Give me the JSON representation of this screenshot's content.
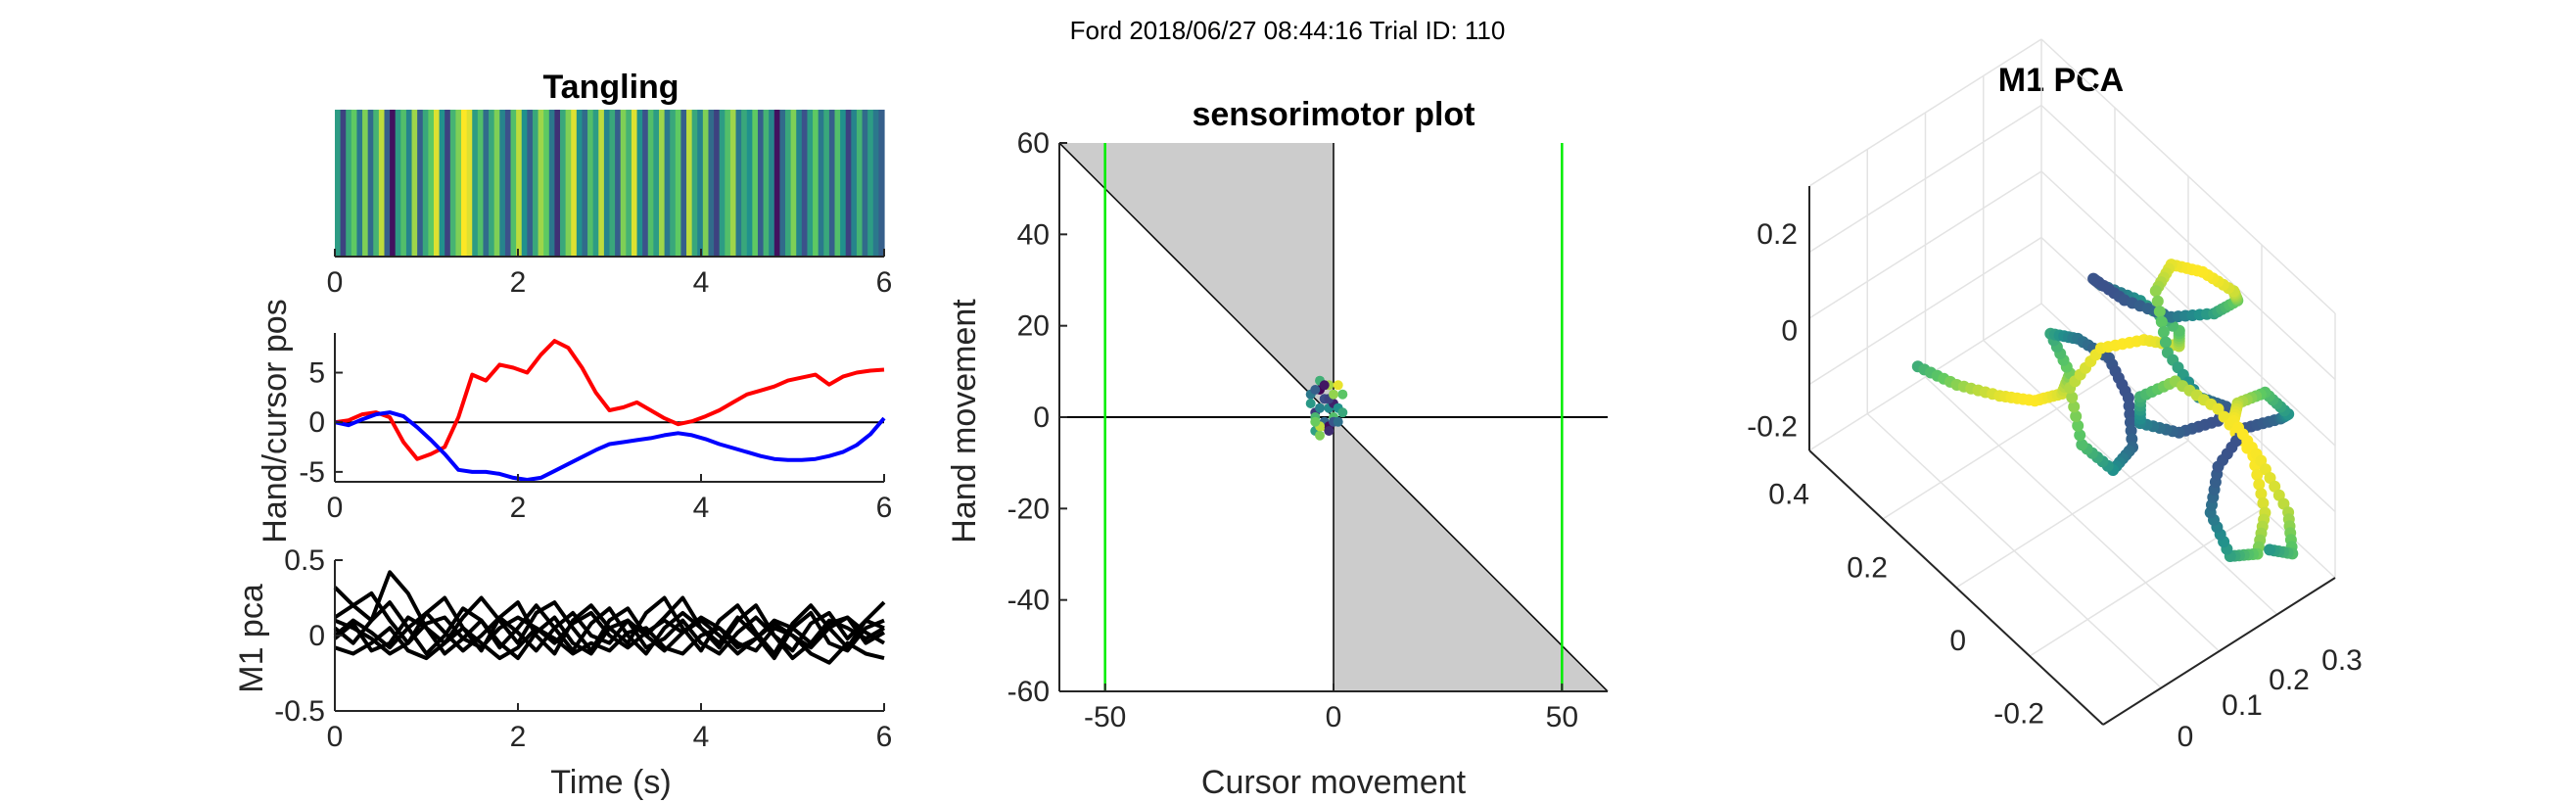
{
  "figure": {
    "suptitle": "Ford 2018/06/27 08:44:16 Trial ID: 110"
  },
  "chart_data": [
    {
      "type": "heatmap",
      "title": "Tangling",
      "xlabel": "",
      "ylabel": "",
      "xlim": [
        0,
        6
      ],
      "xticks": [
        "0",
        "2",
        "4",
        "6"
      ],
      "colormap": "viridis",
      "values": [
        0.55,
        0.2,
        0.6,
        0.75,
        0.4,
        0.8,
        0.35,
        0.65,
        0.9,
        0.3,
        0.05,
        0.55,
        0.7,
        0.45,
        0.85,
        0.3,
        0.6,
        0.75,
        0.95,
        0.5,
        0.2,
        0.65,
        0.8,
        1.0,
        0.95,
        0.55,
        0.7,
        0.35,
        0.6,
        0.8,
        0.45,
        0.25,
        0.7,
        0.9,
        0.5,
        0.3,
        0.6,
        0.85,
        0.75,
        0.4,
        0.15,
        0.6,
        0.8,
        0.95,
        0.5,
        0.35,
        0.7,
        0.55,
        0.9,
        0.45,
        0.6,
        0.3,
        0.8,
        0.65,
        0.95,
        0.5,
        0.25,
        0.7,
        0.55,
        0.85,
        0.4,
        0.6,
        0.75,
        0.3,
        0.9,
        0.6,
        0.45,
        0.8,
        0.35,
        0.2,
        0.55,
        0.7,
        0.85,
        0.4,
        0.6,
        0.5,
        0.75,
        0.3,
        0.65,
        0.45,
        0.05,
        0.35,
        0.6,
        0.8,
        0.45,
        0.25,
        0.55,
        0.75,
        0.4,
        0.6,
        0.3,
        0.7,
        0.5,
        0.2,
        0.45,
        0.65,
        0.35,
        0.55,
        0.4,
        0.3
      ]
    },
    {
      "type": "line",
      "xlabel": "",
      "ylabel": "Hand/cursor pos",
      "xlim": [
        0,
        6
      ],
      "ylim": [
        -6,
        9
      ],
      "xticks": [
        "0",
        "2",
        "4",
        "6"
      ],
      "yticks": [
        "-5",
        "0",
        "5"
      ],
      "reference_line": 0,
      "series": [
        {
          "color": "#ff0000",
          "x": [
            0,
            0.15,
            0.3,
            0.45,
            0.6,
            0.75,
            0.9,
            1.05,
            1.2,
            1.35,
            1.5,
            1.65,
            1.8,
            1.95,
            2.1,
            2.25,
            2.4,
            2.55,
            2.7,
            2.85,
            3.0,
            3.15,
            3.3,
            3.45,
            3.6,
            3.75,
            3.9,
            4.05,
            4.2,
            4.35,
            4.5,
            4.65,
            4.8,
            4.95,
            5.1,
            5.25,
            5.4,
            5.55,
            5.7,
            5.85,
            6.0
          ],
          "values": [
            0,
            0.2,
            0.8,
            1.0,
            0.5,
            -2.0,
            -3.7,
            -3.2,
            -2.5,
            0.5,
            4.8,
            4.2,
            5.8,
            5.5,
            5.0,
            6.8,
            8.2,
            7.5,
            5.5,
            3.0,
            1.2,
            1.5,
            2.0,
            1.2,
            0.4,
            -0.2,
            0.1,
            0.6,
            1.2,
            2.0,
            2.8,
            3.2,
            3.6,
            4.2,
            4.5,
            4.8,
            3.8,
            4.6,
            5.0,
            5.2,
            5.3
          ]
        },
        {
          "color": "#0000ff",
          "x": [
            0,
            0.15,
            0.3,
            0.45,
            0.6,
            0.75,
            0.9,
            1.05,
            1.2,
            1.35,
            1.5,
            1.65,
            1.8,
            1.95,
            2.1,
            2.25,
            2.4,
            2.55,
            2.7,
            2.85,
            3.0,
            3.15,
            3.3,
            3.45,
            3.6,
            3.75,
            3.9,
            4.05,
            4.2,
            4.35,
            4.5,
            4.65,
            4.8,
            4.95,
            5.1,
            5.25,
            5.4,
            5.55,
            5.7,
            5.85,
            6.0
          ],
          "values": [
            0,
            -0.3,
            0.3,
            0.8,
            1.0,
            0.6,
            -0.5,
            -1.8,
            -3.2,
            -4.8,
            -5.0,
            -5.0,
            -5.2,
            -5.6,
            -5.8,
            -5.6,
            -4.9,
            -4.2,
            -3.5,
            -2.8,
            -2.2,
            -2.0,
            -1.8,
            -1.6,
            -1.3,
            -1.1,
            -1.3,
            -1.7,
            -2.2,
            -2.6,
            -3.0,
            -3.4,
            -3.7,
            -3.8,
            -3.8,
            -3.7,
            -3.4,
            -3.0,
            -2.3,
            -1.2,
            0.4
          ]
        }
      ]
    },
    {
      "type": "line",
      "xlabel": "Time (s)",
      "ylabel": "M1 pca",
      "xlim": [
        0,
        6
      ],
      "ylim": [
        -0.5,
        0.5
      ],
      "xticks": [
        "0",
        "2",
        "4",
        "6"
      ],
      "yticks": [
        "-0.5",
        "0",
        "0.5"
      ],
      "color": "#000000",
      "x": [
        0,
        0.2,
        0.4,
        0.6,
        0.8,
        1.0,
        1.2,
        1.4,
        1.6,
        1.8,
        2.0,
        2.2,
        2.4,
        2.6,
        2.8,
        3.0,
        3.2,
        3.4,
        3.6,
        3.8,
        4.0,
        4.2,
        4.4,
        4.6,
        4.8,
        5.0,
        5.2,
        5.4,
        5.6,
        5.8,
        6.0
      ],
      "series": [
        {
          "values": [
            0.32,
            0.2,
            0.1,
            0.42,
            0.28,
            0.05,
            -0.05,
            0.12,
            0.25,
            0.1,
            -0.05,
            0.15,
            0.22,
            0.05,
            -0.1,
            0.1,
            0.18,
            0.0,
            0.12,
            0.25,
            0.05,
            -0.08,
            0.1,
            0.2,
            0.0,
            -0.1,
            0.08,
            0.15,
            -0.02,
            0.1,
            0.22
          ]
        },
        {
          "values": [
            0.12,
            0.2,
            0.28,
            0.1,
            -0.05,
            0.15,
            0.25,
            0.05,
            -0.1,
            0.12,
            0.22,
            0.0,
            -0.12,
            0.1,
            0.2,
            0.05,
            -0.05,
            0.15,
            0.25,
            0.05,
            -0.1,
            0.1,
            0.2,
            0.02,
            -0.12,
            0.08,
            0.2,
            0.05,
            -0.08,
            0.1,
            0.05
          ]
        },
        {
          "values": [
            0.05,
            -0.05,
            0.1,
            0.22,
            0.05,
            -0.12,
            0.0,
            0.18,
            0.1,
            -0.08,
            0.05,
            0.2,
            0.05,
            -0.1,
            0.08,
            0.18,
            0.0,
            -0.12,
            0.05,
            0.15,
            0.05,
            -0.05,
            0.12,
            0.0,
            -0.15,
            0.05,
            0.15,
            -0.05,
            -0.1,
            0.05,
            0.1
          ]
        },
        {
          "values": [
            -0.02,
            0.08,
            -0.1,
            -0.05,
            0.12,
            0.05,
            -0.12,
            -0.02,
            0.1,
            -0.05,
            -0.15,
            0.02,
            0.12,
            -0.05,
            -0.12,
            0.05,
            0.1,
            -0.08,
            -0.02,
            0.1,
            -0.05,
            -0.12,
            0.02,
            0.12,
            0.0,
            -0.15,
            -0.05,
            0.08,
            0.12,
            -0.05,
            0.02
          ]
        },
        {
          "values": [
            0.1,
            0.05,
            -0.02,
            -0.12,
            -0.05,
            0.08,
            0.12,
            -0.02,
            -0.08,
            0.05,
            0.12,
            0.05,
            -0.05,
            0.08,
            0.15,
            0.0,
            -0.08,
            0.02,
            0.1,
            0.02,
            0.12,
            0.05,
            -0.08,
            -0.02,
            0.1,
            0.05,
            -0.05,
            0.1,
            0.05,
            -0.02,
            0.05
          ]
        },
        {
          "values": [
            -0.08,
            -0.12,
            -0.05,
            0.05,
            -0.1,
            -0.15,
            -0.05,
            0.05,
            -0.05,
            -0.15,
            -0.08,
            0.05,
            -0.02,
            -0.12,
            -0.05,
            -0.1,
            0.02,
            0.05,
            -0.08,
            -0.12,
            0.0,
            0.05,
            -0.05,
            -0.1,
            0.05,
            0.0,
            -0.12,
            -0.18,
            -0.05,
            -0.12,
            -0.15
          ]
        },
        {
          "values": [
            0.0,
            0.1,
            0.02,
            -0.08,
            0.05,
            0.15,
            0.02,
            -0.1,
            0.0,
            0.12,
            0.02,
            -0.1,
            0.05,
            0.15,
            0.0,
            -0.05,
            0.1,
            0.0,
            -0.1,
            0.02,
            0.1,
            0.0,
            -0.12,
            -0.02,
            0.08,
            0.0,
            -0.08,
            0.05,
            0.12,
            0.02,
            -0.05
          ]
        }
      ]
    },
    {
      "type": "scatter",
      "title": "sensorimotor plot",
      "xlabel": "Cursor movement",
      "ylabel": "Hand movement",
      "xlim": [
        -60,
        60
      ],
      "ylim": [
        -60,
        60
      ],
      "xticks": [
        "-50",
        "0",
        "50"
      ],
      "yticks": [
        "60",
        "40",
        "20",
        "0",
        "-20",
        "-40",
        "-60"
      ],
      "shaded_regions": "quadrants II and IV between the axes and the diagonal y = -x",
      "vertical_lines": {
        "color": "#00ee00",
        "x": [
          -50,
          50
        ]
      },
      "colormap": "viridis",
      "points": [
        [
          -3,
          6
        ],
        [
          -2,
          4
        ],
        [
          -1,
          2
        ],
        [
          0,
          0
        ],
        [
          -2,
          -2
        ],
        [
          -4,
          1
        ],
        [
          -5,
          5
        ],
        [
          -3,
          8
        ],
        [
          -1,
          7
        ],
        [
          0,
          3
        ],
        [
          -2,
          -1
        ],
        [
          -4,
          -3
        ],
        [
          -3,
          -4
        ],
        [
          -1,
          -2
        ],
        [
          0,
          -1
        ],
        [
          1,
          2
        ],
        [
          2,
          5
        ],
        [
          1,
          7
        ],
        [
          -1,
          4
        ],
        [
          -3,
          2
        ],
        [
          -4,
          0
        ],
        [
          -3,
          -2
        ],
        [
          -1,
          -3
        ],
        [
          1,
          -1
        ],
        [
          2,
          1
        ],
        [
          0,
          5
        ],
        [
          -2,
          7
        ],
        [
          -4,
          6
        ],
        [
          -5,
          3
        ],
        [
          -4,
          -1
        ]
      ]
    },
    {
      "type": "scatter",
      "title": "M1 PCA",
      "projection": "3d",
      "xlim": [
        -0.3,
        0.3
      ],
      "ylim": [
        -0.3,
        0.45
      ],
      "zlim": [
        -0.25,
        0.3
      ],
      "xticks": [
        "0",
        "0.1",
        "0.2",
        "0.3"
      ],
      "yticks": [
        "-0.2",
        "0",
        "0.2",
        "0.4"
      ],
      "zticks": [
        "-0.2",
        "0",
        "0.2"
      ],
      "colormap": "viridis",
      "trajectory": [
        [
          -0.05,
          0.42,
          -0.18
        ],
        [
          -0.02,
          0.35,
          -0.18
        ],
        [
          0.02,
          0.28,
          -0.17
        ],
        [
          0.05,
          0.22,
          -0.15
        ],
        [
          0.08,
          0.18,
          -0.12
        ],
        [
          0.07,
          0.15,
          -0.05
        ],
        [
          0.05,
          0.18,
          0.02
        ],
        [
          0.06,
          0.12,
          0.05
        ],
        [
          0.1,
          0.08,
          0.02
        ],
        [
          0.12,
          0.05,
          -0.05
        ],
        [
          0.1,
          0.02,
          -0.12
        ],
        [
          0.08,
          0.05,
          -0.18
        ],
        [
          0.05,
          0.1,
          -0.15
        ],
        [
          0.07,
          0.15,
          -0.08
        ],
        [
          0.12,
          0.12,
          0.0
        ],
        [
          0.16,
          0.05,
          0.05
        ],
        [
          0.18,
          -0.02,
          0.08
        ],
        [
          0.15,
          -0.05,
          0.15
        ],
        [
          0.1,
          0.0,
          0.2
        ],
        [
          0.05,
          0.05,
          0.22
        ],
        [
          0.08,
          0.1,
          0.18
        ],
        [
          0.14,
          0.08,
          0.12
        ],
        [
          0.2,
          0.02,
          0.1
        ],
        [
          0.24,
          -0.05,
          0.14
        ],
        [
          0.25,
          -0.1,
          0.2
        ],
        [
          0.22,
          -0.12,
          0.25
        ],
        [
          0.18,
          -0.08,
          0.28
        ],
        [
          0.16,
          -0.02,
          0.26
        ],
        [
          0.14,
          0.0,
          0.2
        ],
        [
          0.12,
          -0.05,
          0.12
        ],
        [
          0.15,
          -0.1,
          0.05
        ],
        [
          0.2,
          -0.12,
          0.02
        ],
        [
          0.22,
          -0.08,
          -0.05
        ],
        [
          0.18,
          -0.02,
          -0.1
        ],
        [
          0.12,
          0.02,
          -0.08
        ],
        [
          0.1,
          0.0,
          0.0
        ],
        [
          0.14,
          -0.05,
          0.05
        ],
        [
          0.2,
          -0.1,
          0.0
        ],
        [
          0.24,
          -0.15,
          -0.08
        ],
        [
          0.22,
          -0.2,
          -0.15
        ],
        [
          0.18,
          -0.22,
          -0.2
        ],
        [
          0.15,
          -0.18,
          -0.22
        ],
        [
          0.16,
          -0.12,
          -0.18
        ],
        [
          0.2,
          -0.1,
          -0.12
        ],
        [
          0.25,
          -0.12,
          -0.05
        ],
        [
          0.28,
          -0.18,
          0.0
        ],
        [
          0.26,
          -0.22,
          0.05
        ],
        [
          0.22,
          -0.2,
          0.1
        ],
        [
          0.2,
          -0.15,
          0.05
        ],
        [
          0.22,
          -0.12,
          -0.02
        ],
        [
          0.26,
          -0.15,
          -0.1
        ],
        [
          0.28,
          -0.2,
          -0.18
        ],
        [
          0.25,
          -0.24,
          -0.22
        ],
        [
          0.2,
          -0.22,
          -0.2
        ]
      ]
    }
  ]
}
